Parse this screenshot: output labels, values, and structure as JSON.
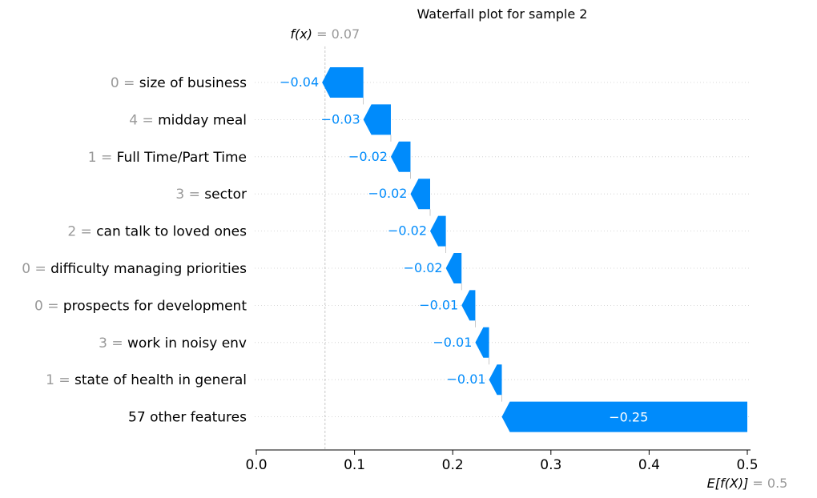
{
  "chart_data": {
    "type": "waterfall",
    "title": "Waterfall plot for sample 2",
    "fx_label": "f(x)",
    "fx_value": 0.07,
    "fx_value_text": "= 0.07",
    "efx_label": "E[f(X)]",
    "efx_value": 0.5,
    "efx_value_text": "= 0.5",
    "xlim": [
      0.0,
      0.5
    ],
    "xticks": [
      0.0,
      0.1,
      0.2,
      0.3,
      0.4,
      0.5
    ],
    "xtick_labels": [
      "0.0",
      "0.1",
      "0.2",
      "0.3",
      "0.4",
      "0.5"
    ],
    "grid": false,
    "features": [
      {
        "value_text": "0 =",
        "name": "size of business",
        "contribution": -0.042,
        "label": "−0.04"
      },
      {
        "value_text": "4 =",
        "name": "midday meal",
        "contribution": -0.028,
        "label": "−0.03"
      },
      {
        "value_text": "1 =",
        "name": "Full Time/Part Time",
        "contribution": -0.02,
        "label": "−0.02"
      },
      {
        "value_text": "3 =",
        "name": "sector",
        "contribution": -0.02,
        "label": "−0.02"
      },
      {
        "value_text": "2 =",
        "name": "can talk to loved ones",
        "contribution": -0.016,
        "label": "−0.02"
      },
      {
        "value_text": "0 =",
        "name": "difficulty managing priorities",
        "contribution": -0.016,
        "label": "−0.02"
      },
      {
        "value_text": "0 =",
        "name": "prospects for development",
        "contribution": -0.014,
        "label": "−0.01"
      },
      {
        "value_text": "3 =",
        "name": "work in noisy env",
        "contribution": -0.014,
        "label": "−0.01"
      },
      {
        "value_text": "1 =",
        "name": "state of health in general",
        "contribution": -0.013,
        "label": "−0.01"
      },
      {
        "value_text": "",
        "name": "57 other features",
        "contribution": -0.25,
        "label": "−0.25"
      }
    ],
    "colors": {
      "negative": "#008bfb",
      "value_text": "#999999",
      "axis": "#000000",
      "guide": "#cccccc"
    }
  }
}
